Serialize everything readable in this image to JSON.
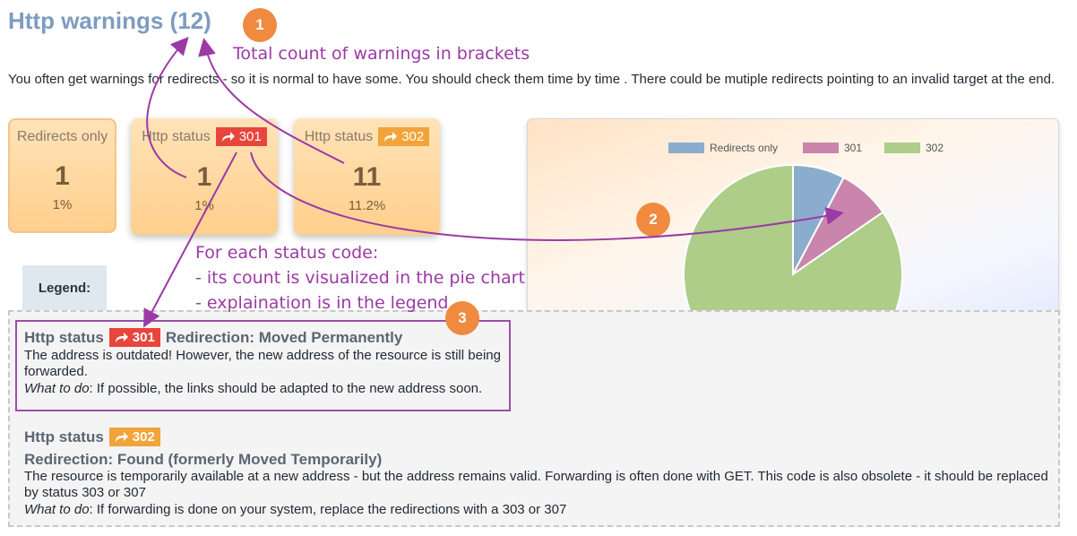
{
  "page": {
    "title": "Http warnings (12)",
    "intro": "You often get warnings for redirects - so it is normal to have some. You should check them time by time . There could be mutiple redirects pointing to an invalid target at the end."
  },
  "tiles": [
    {
      "label": "Redirects only",
      "badge": "",
      "count": "1",
      "percent": "1%"
    },
    {
      "label": "Http status",
      "badge": "301",
      "count": "1",
      "percent": "1%"
    },
    {
      "label": "Http status",
      "badge": "302",
      "count": "11",
      "percent": "11.2%"
    }
  ],
  "colors": {
    "red_badge": "#e8453c",
    "orange_badge": "#f0a43a",
    "annotation": "#9b3aa5",
    "callout": "#ef8a3f"
  },
  "chart_data": {
    "type": "pie",
    "categories": [
      "Redirects only",
      "301",
      "302"
    ],
    "values": [
      1,
      1,
      11
    ],
    "colors": [
      "#8badcd",
      "#c985ac",
      "#adcd89"
    ],
    "legend_position": "top"
  },
  "legend": {
    "label": "Legend:",
    "entries": [
      {
        "prefix": "Http status",
        "badge": "301",
        "title": "Redirection: Moved Permanently",
        "body": "The address is outdated! However, the new address of the resource is still being forwarded.",
        "what_label": "What to do",
        "what": ": If possible, the links should be adapted to the new address soon."
      },
      {
        "prefix": "Http status",
        "badge": "302",
        "title": "Redirection: Found (formerly Moved Temporarily)",
        "body": "The resource is temporarily available at a new address - but the address remains valid. Forwarding is often done with GET. This code is also obsolete - it should be replaced by status 303 or 307",
        "what_label": "What to do",
        "what": ": If forwarding is done on your system, replace the redirections with a 303 or 307"
      }
    ]
  },
  "annotations": {
    "callouts": [
      "1",
      "2",
      "3"
    ],
    "note_1": "Total count of warnings in brackets",
    "note_2": "For each status code:\n- its count is visualized in the pie chart\n- explaination is in the legend"
  },
  "icons": {
    "badge_icon": "redirect-arrow-icon"
  }
}
